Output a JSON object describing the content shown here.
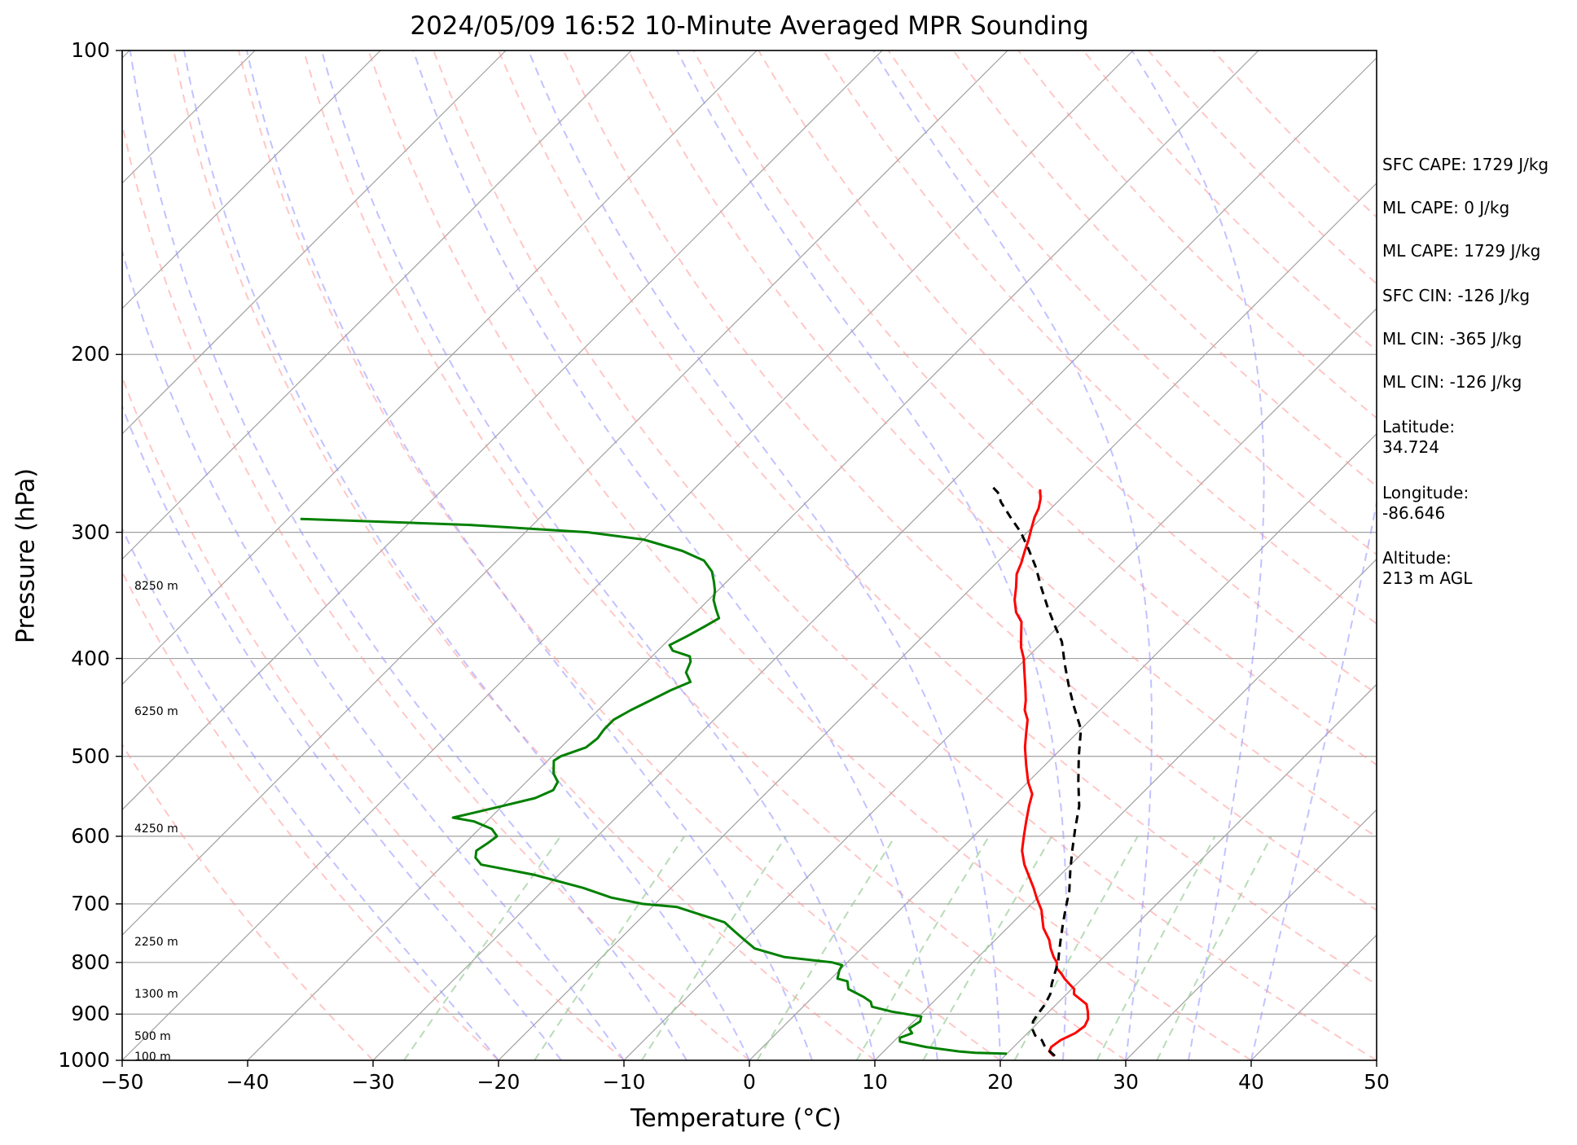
{
  "title": "2024/05/09 16:52 10-Minute Averaged MPR Sounding",
  "xlabel": "Temperature (°C)",
  "ylabel": "Pressure (hPa)",
  "xticks": [
    "−50",
    "−40",
    "−30",
    "−20",
    "−10",
    "0",
    "10",
    "20",
    "30",
    "40",
    "50"
  ],
  "yticks": [
    "100",
    "200",
    "300",
    "400",
    "500",
    "600",
    "700",
    "800",
    "900",
    "1000"
  ],
  "height_labels": [
    "8250 m",
    "6250 m",
    "4250 m",
    "2250 m",
    "1300 m",
    "500 m",
    "100 m"
  ],
  "stats": {
    "sfc_cape": "SFC CAPE: 1729 J/kg",
    "ml_cape_1": "ML CAPE: 0 J/kg",
    "ml_cape_2": "ML CAPE: 1729 J/kg",
    "sfc_cin": "SFC CIN: -126 J/kg",
    "ml_cin_1": "ML CIN: -365 J/kg",
    "ml_cin_2": "ML CIN: -126 J/kg",
    "latitude": "Latitude:\n34.724",
    "longitude": "Longitude:\n-86.646",
    "altitude": "Altitude:\n213 m AGL"
  },
  "colors": {
    "temperature": "#ff0000",
    "dewpoint": "#008000",
    "parcel": "#000000",
    "isotherm": "#a0a0a0",
    "dry_adiabat": "#ff9999",
    "moist_adiabat": "#9999ff",
    "mixing_ratio": "#99cc99"
  },
  "chart_data": {
    "type": "line",
    "title": "2024/05/09 16:52 10-Minute Averaged MPR Sounding",
    "xlabel": "Temperature (°C)",
    "ylabel": "Pressure (hPa)",
    "xlim": [
      -50,
      50
    ],
    "ylim": [
      1000,
      100
    ],
    "yscale": "log",
    "grid": true,
    "skew": "skew-T log-p",
    "series": [
      {
        "name": "",
        "color": "#ff0000",
        "points": [
          [
            23.9,
            990
          ],
          [
            23.2,
            980
          ],
          [
            23.0,
            970
          ],
          [
            23.2,
            955
          ],
          [
            23.8,
            940
          ],
          [
            24.0,
            925
          ],
          [
            23.7,
            910
          ],
          [
            23.1,
            895
          ],
          [
            22.4,
            880
          ],
          [
            21.5,
            870
          ],
          [
            20.6,
            860
          ],
          [
            20.2,
            850
          ],
          [
            19.4,
            840
          ],
          [
            18.6,
            830
          ],
          [
            17.9,
            820
          ],
          [
            17.1,
            810
          ],
          [
            16.7,
            800
          ],
          [
            16.0,
            790
          ],
          [
            15.1,
            775
          ],
          [
            14.3,
            760
          ],
          [
            12.9,
            740
          ],
          [
            12.1,
            725
          ],
          [
            11.3,
            710
          ],
          [
            10.6,
            700
          ],
          [
            9.9,
            690
          ],
          [
            8.9,
            675
          ],
          [
            7.8,
            660
          ],
          [
            6.3,
            640
          ],
          [
            5.0,
            620
          ],
          [
            4.0,
            600
          ],
          [
            3.0,
            580
          ],
          [
            2.0,
            560
          ],
          [
            1.3,
            545
          ],
          [
            0.0,
            530
          ],
          [
            -1.5,
            510
          ],
          [
            -3.0,
            490
          ],
          [
            -4.0,
            475
          ],
          [
            -5.0,
            460
          ],
          [
            -6.0,
            450
          ],
          [
            -6.7,
            440
          ],
          [
            -7.7,
            428
          ],
          [
            -8.4,
            420
          ],
          [
            -9.3,
            410
          ],
          [
            -10.2,
            400
          ],
          [
            -11.3,
            390
          ],
          [
            -12.2,
            380
          ],
          [
            -13.3,
            368
          ],
          [
            -14.5,
            360
          ],
          [
            -15.6,
            350
          ],
          [
            -16.5,
            340
          ],
          [
            -17.5,
            330
          ],
          [
            -18.0,
            322
          ],
          [
            -18.7,
            313
          ],
          [
            -19.3,
            305
          ],
          [
            -20.0,
            297
          ],
          [
            -20.6,
            290
          ],
          [
            -21.0,
            284
          ],
          [
            -21.6,
            278
          ],
          [
            -22.4,
            272
          ]
        ]
      },
      {
        "name": "",
        "color": "#008000",
        "points": [
          [
            20.0,
            985
          ],
          [
            17.4,
            983
          ],
          [
            16.0,
            980
          ],
          [
            13.0,
            970
          ],
          [
            10.5,
            958
          ],
          [
            10.2,
            950
          ],
          [
            10.8,
            940
          ],
          [
            10.2,
            930
          ],
          [
            10.5,
            915
          ],
          [
            10.2,
            905
          ],
          [
            7.5,
            895
          ],
          [
            5.5,
            885
          ],
          [
            5.0,
            875
          ],
          [
            4.0,
            865
          ],
          [
            2.2,
            850
          ],
          [
            1.5,
            835
          ],
          [
            0.5,
            830
          ],
          [
            0.0,
            815
          ],
          [
            -0.2,
            805
          ],
          [
            -1.2,
            800
          ],
          [
            -5.5,
            790
          ],
          [
            -8.5,
            775
          ],
          [
            -10.0,
            760
          ],
          [
            -11.5,
            745
          ],
          [
            -13.0,
            730
          ],
          [
            -16.0,
            715
          ],
          [
            -18.0,
            705
          ],
          [
            -21.0,
            700
          ],
          [
            -24.0,
            690
          ],
          [
            -27.0,
            675
          ],
          [
            -32.0,
            655
          ],
          [
            -37.0,
            640
          ],
          [
            -38.0,
            630
          ],
          [
            -38.5,
            620
          ],
          [
            -38.2,
            610
          ],
          [
            -38.0,
            600
          ],
          [
            -39.0,
            590
          ],
          [
            -41.0,
            580
          ],
          [
            -43.0,
            575
          ],
          [
            -42.0,
            570
          ],
          [
            -40.0,
            560
          ],
          [
            -38.0,
            550
          ],
          [
            -37.2,
            540
          ],
          [
            -37.5,
            530
          ],
          [
            -38.5,
            520
          ],
          [
            -39.5,
            505
          ],
          [
            -39.3,
            500
          ],
          [
            -38.0,
            490
          ],
          [
            -37.8,
            480
          ],
          [
            -38.0,
            470
          ],
          [
            -38.0,
            460
          ],
          [
            -37.4,
            450
          ],
          [
            -36.6,
            440
          ],
          [
            -35.8,
            430
          ],
          [
            -34.9,
            422
          ],
          [
            -36.0,
            413
          ],
          [
            -36.5,
            403
          ],
          [
            -37.0,
            398
          ],
          [
            -38.8,
            393
          ],
          [
            -39.5,
            388
          ],
          [
            -38.8,
            380
          ],
          [
            -38.2,
            372
          ],
          [
            -37.7,
            365
          ],
          [
            -38.6,
            358
          ],
          [
            -39.6,
            350
          ],
          [
            -40.2,
            343
          ],
          [
            -41.0,
            336
          ],
          [
            -42.0,
            328
          ],
          [
            -43.5,
            320
          ],
          [
            -46.0,
            313
          ],
          [
            -50.0,
            305
          ],
          [
            -55.0,
            300
          ],
          [
            -65.0,
            295
          ],
          [
            -79.0,
            291
          ]
        ]
      },
      {
        "name": "",
        "color": "#000000",
        "points": [
          [
            24.0,
            990
          ],
          [
            22.5,
            970
          ],
          [
            21.7,
            955
          ],
          [
            20.8,
            945
          ],
          [
            20.0,
            930
          ],
          [
            19.5,
            915
          ],
          [
            19.3,
            900
          ],
          [
            19.1,
            880
          ],
          [
            18.7,
            860
          ],
          [
            18.0,
            840
          ],
          [
            17.4,
            820
          ],
          [
            16.8,
            800
          ],
          [
            16.0,
            780
          ],
          [
            15.0,
            755
          ],
          [
            14.0,
            730
          ],
          [
            13.0,
            705
          ],
          [
            12.0,
            680
          ],
          [
            10.5,
            650
          ],
          [
            9.0,
            620
          ],
          [
            7.5,
            590
          ],
          [
            6.0,
            560
          ],
          [
            4.0,
            530
          ],
          [
            2.0,
            500
          ],
          [
            0.0,
            470
          ],
          [
            -2.5,
            445
          ],
          [
            -4.5,
            425
          ],
          [
            -6.5,
            405
          ],
          [
            -8.5,
            385
          ],
          [
            -10.5,
            370
          ],
          [
            -12.5,
            355
          ],
          [
            -14.5,
            340
          ],
          [
            -16.5,
            325
          ],
          [
            -18.5,
            312
          ],
          [
            -20.5,
            300
          ],
          [
            -22.5,
            290
          ],
          [
            -24.5,
            280
          ],
          [
            -25.5,
            274
          ],
          [
            -26.5,
            270
          ]
        ]
      }
    ]
  }
}
